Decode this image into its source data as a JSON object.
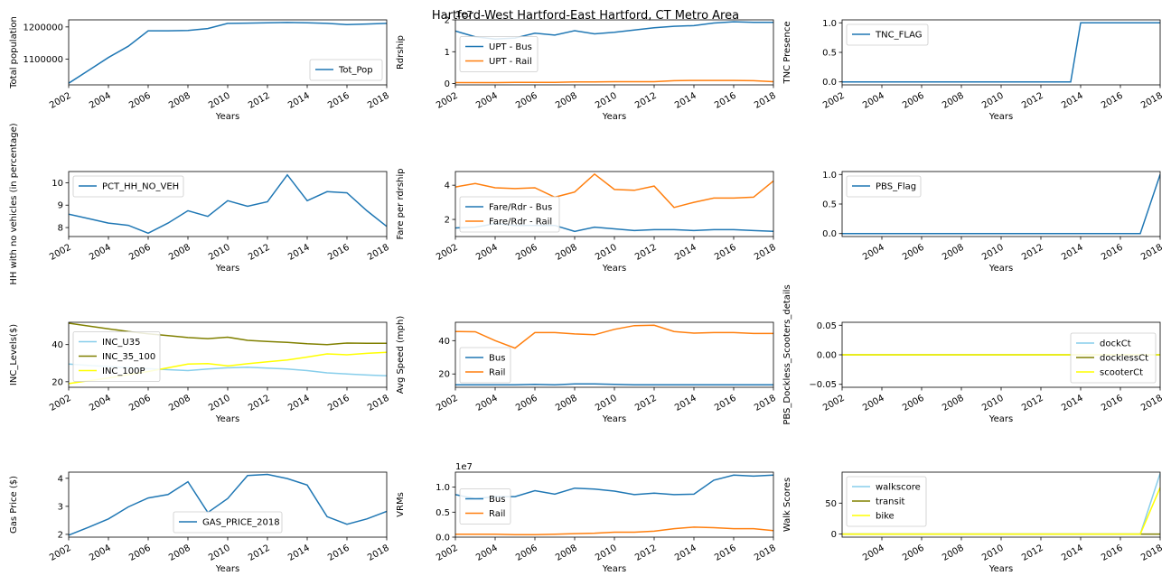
{
  "title": "Hartford-West Hartford-East Hartford, CT Metro Area",
  "colors": {
    "blue": "#1f77b4",
    "orange": "#ff7f0e",
    "skyblue": "#87ceeb",
    "olive": "#808000",
    "yellow": "#ffff00"
  },
  "chart_data": [
    {
      "id": "tot_pop",
      "type": "line",
      "xlabel": "Years",
      "ylabel": "Total population",
      "xlim": [
        2002,
        2018
      ],
      "ylim": [
        1020000,
        1222000
      ],
      "xticks": [
        2002,
        2004,
        2006,
        2008,
        2010,
        2012,
        2014,
        2016,
        2018
      ],
      "yticks": [
        1100000,
        1200000
      ],
      "ytick_labels": [
        "1100000",
        "1200000"
      ],
      "legend": "lower right",
      "series": [
        {
          "name": "Tot_Pop",
          "color": "blue",
          "x": [
            2002,
            2003,
            2004,
            2005,
            2006,
            2007,
            2008,
            2009,
            2010,
            2011,
            2012,
            2013,
            2014,
            2015,
            2016,
            2017,
            2018
          ],
          "y": [
            1025000,
            1065000,
            1105000,
            1140000,
            1188000,
            1188000,
            1189000,
            1195000,
            1211000,
            1212000,
            1213000,
            1214000,
            1213000,
            1211000,
            1207000,
            1209000,
            1211000
          ]
        }
      ]
    },
    {
      "id": "rdrship",
      "type": "line",
      "xlabel": "Years",
      "ylabel": "Rdrship",
      "offset_text": "1e7",
      "xlim": [
        2002,
        2018
      ],
      "ylim": [
        -0.04,
        2.0
      ],
      "xticks": [
        2002,
        2004,
        2006,
        2008,
        2010,
        2012,
        2014,
        2016,
        2018
      ],
      "yticks": [
        0,
        1,
        2
      ],
      "ytick_labels": [
        "0",
        "1",
        "2"
      ],
      "legend": "center left",
      "series": [
        {
          "name": "UPT - Bus",
          "color": "blue",
          "x": [
            2002,
            2003,
            2004,
            2005,
            2006,
            2007,
            2008,
            2009,
            2010,
            2011,
            2012,
            2013,
            2014,
            2015,
            2016,
            2017,
            2018
          ],
          "y": [
            1.65,
            1.47,
            1.4,
            1.43,
            1.58,
            1.52,
            1.66,
            1.56,
            1.61,
            1.68,
            1.75,
            1.8,
            1.82,
            1.9,
            1.94,
            1.92,
            1.92
          ]
        },
        {
          "name": "UPT - Rail",
          "color": "orange",
          "x": [
            2002,
            2003,
            2004,
            2005,
            2006,
            2007,
            2008,
            2009,
            2010,
            2011,
            2012,
            2013,
            2014,
            2015,
            2016,
            2017,
            2018
          ],
          "y": [
            0.03,
            0.03,
            0.03,
            0.04,
            0.04,
            0.04,
            0.05,
            0.05,
            0.06,
            0.06,
            0.06,
            0.09,
            0.1,
            0.1,
            0.1,
            0.09,
            0.06
          ]
        }
      ]
    },
    {
      "id": "tnc",
      "type": "line",
      "xlabel": "Years",
      "ylabel": "TNC Presence",
      "xlim": [
        2002,
        2018
      ],
      "ylim": [
        -0.05,
        1.05
      ],
      "xticks": [
        2002,
        2004,
        2006,
        2008,
        2010,
        2012,
        2014,
        2016,
        2018
      ],
      "yticks": [
        0,
        0.5,
        1
      ],
      "ytick_labels": [
        "0.0",
        "0.5",
        "1.0"
      ],
      "legend": "upper left",
      "series": [
        {
          "name": "TNC_FLAG",
          "color": "blue",
          "x": [
            2002,
            2013.5,
            2014,
            2018
          ],
          "y": [
            0,
            0,
            1,
            1
          ]
        }
      ]
    },
    {
      "id": "hh_no_veh",
      "type": "line",
      "xlabel": "Years",
      "ylabel": "HH with no vehicles (in percentage)",
      "xlim": [
        2002,
        2018
      ],
      "ylim": [
        7.6,
        10.5
      ],
      "xticks": [
        2002,
        2004,
        2006,
        2008,
        2010,
        2012,
        2014,
        2016,
        2018
      ],
      "yticks": [
        8,
        9,
        10
      ],
      "ytick_labels": [
        "8",
        "9",
        "10"
      ],
      "legend": "upper left",
      "series": [
        {
          "name": "PCT_HH_NO_VEH",
          "color": "blue",
          "x": [
            2002,
            2003,
            2004,
            2005,
            2006,
            2007,
            2008,
            2009,
            2010,
            2011,
            2012,
            2013,
            2014,
            2015,
            2016,
            2017,
            2018
          ],
          "y": [
            8.6,
            8.4,
            8.2,
            8.1,
            7.75,
            8.2,
            8.75,
            8.5,
            9.2,
            8.95,
            9.15,
            10.35,
            9.2,
            9.6,
            9.55,
            8.75,
            8.05
          ]
        }
      ]
    },
    {
      "id": "fare",
      "type": "line",
      "xlabel": "Years",
      "ylabel": "Fare per rdrship",
      "xlim": [
        2002,
        2018
      ],
      "ylim": [
        1.0,
        4.8
      ],
      "xticks": [
        2002,
        2004,
        2006,
        2008,
        2010,
        2012,
        2014,
        2016,
        2018
      ],
      "yticks": [
        2,
        4
      ],
      "ytick_labels": [
        "2",
        "4"
      ],
      "legend": "lower left",
      "series": [
        {
          "name": "Fare/Rdr - Bus",
          "color": "blue",
          "x": [
            2002,
            2003,
            2004,
            2005,
            2006,
            2007,
            2008,
            2009,
            2010,
            2011,
            2012,
            2013,
            2014,
            2015,
            2016,
            2017,
            2018
          ],
          "y": [
            1.5,
            1.55,
            1.75,
            1.65,
            1.65,
            1.65,
            1.3,
            1.55,
            1.45,
            1.35,
            1.4,
            1.4,
            1.35,
            1.4,
            1.4,
            1.35,
            1.3
          ]
        },
        {
          "name": "Fare/Rdr - Rail",
          "color": "orange",
          "x": [
            2002,
            2003,
            2004,
            2005,
            2006,
            2007,
            2008,
            2009,
            2010,
            2011,
            2012,
            2013,
            2014,
            2015,
            2016,
            2017,
            2018
          ],
          "y": [
            3.9,
            4.1,
            3.85,
            3.8,
            3.85,
            3.3,
            3.6,
            4.65,
            3.75,
            3.7,
            3.95,
            2.7,
            3.0,
            3.25,
            3.25,
            3.3,
            4.25
          ]
        }
      ]
    },
    {
      "id": "pbs",
      "type": "line",
      "xlabel": "Years",
      "ylabel": "",
      "xlim": [
        2002,
        2018
      ],
      "ylim": [
        -0.05,
        1.05
      ],
      "xticks": [
        2004,
        2006,
        2008,
        2010,
        2012,
        2014,
        2016,
        2018
      ],
      "yticks": [
        0,
        0.5,
        1
      ],
      "ytick_labels": [
        "0.0",
        "0.5",
        "1.0"
      ],
      "legend": "upper left",
      "series": [
        {
          "name": "PBS_Flag",
          "color": "blue",
          "x": [
            2002,
            2017,
            2018
          ],
          "y": [
            0,
            0,
            1
          ]
        }
      ]
    },
    {
      "id": "inc",
      "type": "line",
      "xlabel": "Years",
      "ylabel": "INC_Levels($)",
      "xlim": [
        2002,
        2018
      ],
      "ylim": [
        17,
        52
      ],
      "xticks": [
        2002,
        2004,
        2006,
        2008,
        2010,
        2012,
        2014,
        2016,
        2018
      ],
      "yticks": [
        20,
        40
      ],
      "ytick_labels": [
        "20",
        "40"
      ],
      "legend": "center left",
      "series": [
        {
          "name": "INC_U35",
          "color": "skyblue",
          "x": [
            2002,
            2003,
            2004,
            2005,
            2006,
            2007,
            2008,
            2009,
            2010,
            2011,
            2012,
            2013,
            2014,
            2015,
            2016,
            2017,
            2018
          ],
          "y": [
            29.5,
            28.8,
            28.2,
            27.6,
            27.0,
            26.5,
            26.0,
            26.8,
            27.5,
            27.8,
            27.3,
            26.8,
            26.0,
            24.8,
            24.2,
            23.6,
            23.2
          ]
        },
        {
          "name": "INC_35_100",
          "color": "olive",
          "x": [
            2002,
            2003,
            2004,
            2005,
            2006,
            2007,
            2008,
            2009,
            2010,
            2011,
            2012,
            2013,
            2014,
            2015,
            2016,
            2017,
            2018
          ],
          "y": [
            51.5,
            50.0,
            48.5,
            47.0,
            45.8,
            44.8,
            43.8,
            43.2,
            44.0,
            42.3,
            41.7,
            41.2,
            40.5,
            40.0,
            40.8,
            40.7,
            40.7
          ]
        },
        {
          "name": "INC_100P",
          "color": "yellow",
          "x": [
            2002,
            2003,
            2004,
            2005,
            2006,
            2007,
            2008,
            2009,
            2010,
            2011,
            2012,
            2013,
            2014,
            2015,
            2016,
            2017,
            2018
          ],
          "y": [
            19.0,
            20.5,
            22.0,
            23.8,
            25.5,
            27.5,
            29.5,
            29.8,
            28.5,
            29.7,
            30.7,
            31.7,
            33.3,
            35.0,
            34.5,
            35.3,
            35.8
          ]
        }
      ]
    },
    {
      "id": "speed",
      "type": "line",
      "xlabel": "Years",
      "ylabel": "Avg Speed (mph)",
      "xlim": [
        2002,
        2018
      ],
      "ylim": [
        12,
        51
      ],
      "xticks": [
        2002,
        2004,
        2006,
        2008,
        2010,
        2012,
        2014,
        2016,
        2018
      ],
      "yticks": [
        20,
        40
      ],
      "ytick_labels": [
        "20",
        "40"
      ],
      "legend": "lower left",
      "series": [
        {
          "name": "Bus",
          "color": "blue",
          "x": [
            2002,
            2003,
            2004,
            2005,
            2006,
            2007,
            2008,
            2009,
            2010,
            2011,
            2012,
            2013,
            2014,
            2015,
            2016,
            2017,
            2018
          ],
          "y": [
            13.5,
            13.5,
            13.5,
            13.5,
            13.8,
            13.5,
            14.0,
            14.0,
            13.8,
            13.5,
            13.5,
            13.5,
            13.5,
            13.5,
            13.5,
            13.5,
            13.5
          ]
        },
        {
          "name": "Rail",
          "color": "orange",
          "x": [
            2002,
            2003,
            2004,
            2005,
            2006,
            2007,
            2008,
            2009,
            2010,
            2011,
            2012,
            2013,
            2014,
            2015,
            2016,
            2017,
            2018
          ],
          "y": [
            45.5,
            45.3,
            40.0,
            35.5,
            44.8,
            44.8,
            44.0,
            43.5,
            46.8,
            49.0,
            49.2,
            45.5,
            44.5,
            44.8,
            44.8,
            44.3,
            44.3
          ]
        }
      ]
    },
    {
      "id": "micromobility",
      "type": "line",
      "xlabel": "Years",
      "ylabel": "PBS_Dockless_Scooters_details",
      "xlim": [
        2002,
        2018
      ],
      "ylim": [
        -0.055,
        0.055
      ],
      "xticks": [
        2002,
        2004,
        2006,
        2008,
        2010,
        2012,
        2014,
        2016,
        2018
      ],
      "yticks": [
        -0.05,
        0,
        0.05
      ],
      "ytick_labels": [
        "−0.05",
        "0.00",
        "0.05"
      ],
      "legend": "lower right",
      "series": [
        {
          "name": "dockCt",
          "color": "skyblue",
          "x": [
            2002,
            2018
          ],
          "y": [
            0,
            0
          ]
        },
        {
          "name": "docklessCt",
          "color": "olive",
          "x": [
            2002,
            2018
          ],
          "y": [
            0,
            0
          ]
        },
        {
          "name": "scooterCt",
          "color": "yellow",
          "x": [
            2002,
            2018
          ],
          "y": [
            0,
            0
          ]
        }
      ]
    },
    {
      "id": "gas",
      "type": "line",
      "xlabel": "Years",
      "ylabel": "Gas Price ($)",
      "xlim": [
        2002,
        2018
      ],
      "ylim": [
        1.9,
        4.22
      ],
      "xticks": [
        2002,
        2004,
        2006,
        2008,
        2010,
        2012,
        2014,
        2016,
        2018
      ],
      "yticks": [
        2,
        3,
        4
      ],
      "ytick_labels": [
        "2",
        "3",
        "4"
      ],
      "legend": "lower center",
      "series": [
        {
          "name": "GAS_PRICE_2018",
          "color": "blue",
          "x": [
            2002,
            2003,
            2004,
            2005,
            2006,
            2007,
            2008,
            2009,
            2010,
            2011,
            2012,
            2013,
            2014,
            2015,
            2016,
            2017,
            2018
          ],
          "y": [
            1.97,
            2.25,
            2.55,
            2.98,
            3.3,
            3.42,
            3.88,
            2.78,
            3.28,
            4.1,
            4.14,
            3.99,
            3.76,
            2.63,
            2.36,
            2.55,
            2.82
          ]
        }
      ]
    },
    {
      "id": "vrms",
      "type": "line",
      "xlabel": "Years",
      "ylabel": "VRMs",
      "offset_text": "1e7",
      "xlim": [
        2002,
        2018
      ],
      "ylim": [
        0,
        1.3
      ],
      "xticks": [
        2002,
        2004,
        2006,
        2008,
        2010,
        2012,
        2014,
        2016,
        2018
      ],
      "yticks": [
        0,
        0.5,
        1
      ],
      "ytick_labels": [
        "0.0",
        "0.5",
        "1.0"
      ],
      "legend": "center left",
      "series": [
        {
          "name": "Bus",
          "color": "blue",
          "x": [
            2002,
            2003,
            2004,
            2005,
            2006,
            2007,
            2008,
            2009,
            2010,
            2011,
            2012,
            2013,
            2014,
            2015,
            2016,
            2017,
            2018
          ],
          "y": [
            0.85,
            0.77,
            0.81,
            0.81,
            0.93,
            0.86,
            0.98,
            0.96,
            0.92,
            0.85,
            0.88,
            0.85,
            0.86,
            1.14,
            1.24,
            1.22,
            1.24
          ]
        },
        {
          "name": "Rail",
          "color": "orange",
          "x": [
            2002,
            2003,
            2004,
            2005,
            2006,
            2007,
            2008,
            2009,
            2010,
            2011,
            2012,
            2013,
            2014,
            2015,
            2016,
            2017,
            2018
          ],
          "y": [
            0.06,
            0.06,
            0.06,
            0.05,
            0.05,
            0.06,
            0.07,
            0.08,
            0.1,
            0.1,
            0.12,
            0.17,
            0.2,
            0.19,
            0.17,
            0.17,
            0.13
          ]
        }
      ]
    },
    {
      "id": "walk",
      "type": "line",
      "xlabel": "Years",
      "ylabel": "Walk Scores",
      "xlim": [
        2002,
        2018
      ],
      "ylim": [
        -5,
        100
      ],
      "xticks": [
        2004,
        2006,
        2008,
        2010,
        2012,
        2014,
        2016,
        2018
      ],
      "yticks": [
        0,
        50
      ],
      "ytick_labels": [
        "0",
        "50"
      ],
      "legend": "upper left",
      "series": [
        {
          "name": "walkscore",
          "color": "skyblue",
          "x": [
            2002,
            2017,
            2018
          ],
          "y": [
            0,
            0,
            98
          ]
        },
        {
          "name": "transit",
          "color": "olive",
          "x": [
            2002,
            2017,
            2018
          ],
          "y": [
            0,
            0,
            0
          ]
        },
        {
          "name": "bike",
          "color": "yellow",
          "x": [
            2002,
            2017,
            2018
          ],
          "y": [
            0,
            0,
            75
          ]
        }
      ]
    }
  ]
}
